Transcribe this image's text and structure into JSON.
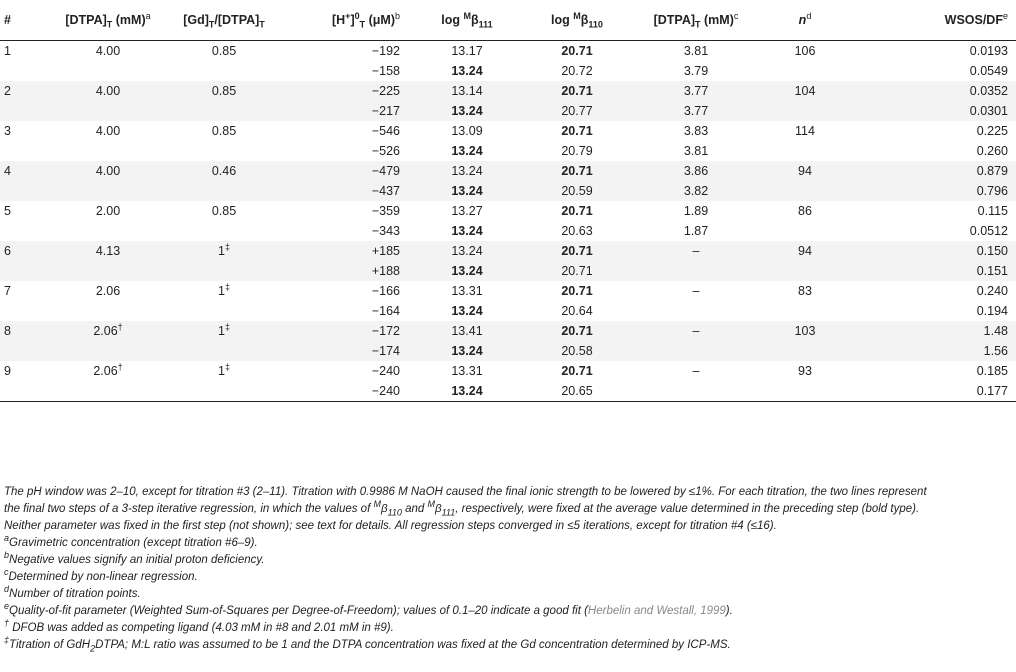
{
  "table": {
    "headers": [
      {
        "main": "#",
        "sub": "",
        "sup": "",
        "sub2": "",
        "tail": ""
      },
      {
        "main": "[DTPA]",
        "sub": "T",
        "sup": "",
        "tail": " (mM)",
        "fn": "a"
      },
      {
        "main": "[Gd]",
        "sub": "T",
        "sup": "",
        "tail": "/[DTPA]",
        "sub2": "T"
      },
      {
        "main": "[H",
        "sup": "+",
        "mid": "]",
        "sup2": "0",
        "sub": "T",
        "tail": " (μM)",
        "fn": "b"
      },
      {
        "main": "log ",
        "sup": "M",
        "greek": "β",
        "sub": "111"
      },
      {
        "main": "log ",
        "sup": "M",
        "greek": "β",
        "sub": "110"
      },
      {
        "main": "[DTPA]",
        "sub": "T",
        "tail": " (mM)",
        "fn": "c"
      },
      {
        "main": "n",
        "fn": "d"
      },
      {
        "main": "WSOS/DF",
        "fn": "e"
      }
    ],
    "rows": [
      {
        "id": "1",
        "dtpa": "4.00",
        "ratio": "0.85",
        "ratio_fn": "",
        "h": "−192",
        "b111": "13.17",
        "b111_bold": false,
        "b110": "20.71",
        "b110_bold": true,
        "dtpa_fit": "3.81",
        "n": "106",
        "wsos": "0.0193",
        "dtpa_fn": ""
      },
      {
        "id": "",
        "dtpa": "",
        "ratio": "",
        "ratio_fn": "",
        "h": "−158",
        "b111": "13.24",
        "b111_bold": true,
        "b110": "20.72",
        "b110_bold": false,
        "dtpa_fit": "3.79",
        "n": "",
        "wsos": "0.0549",
        "dtpa_fn": ""
      },
      {
        "id": "2",
        "dtpa": "4.00",
        "ratio": "0.85",
        "ratio_fn": "",
        "h": "−225",
        "b111": "13.14",
        "b111_bold": false,
        "b110": "20.71",
        "b110_bold": true,
        "dtpa_fit": "3.77",
        "n": "104",
        "wsos": "0.0352",
        "dtpa_fn": ""
      },
      {
        "id": "",
        "dtpa": "",
        "ratio": "",
        "ratio_fn": "",
        "h": "−217",
        "b111": "13.24",
        "b111_bold": true,
        "b110": "20.77",
        "b110_bold": false,
        "dtpa_fit": "3.77",
        "n": "",
        "wsos": "0.0301",
        "dtpa_fn": ""
      },
      {
        "id": "3",
        "dtpa": "4.00",
        "ratio": "0.85",
        "ratio_fn": "",
        "h": "−546",
        "b111": "13.09",
        "b111_bold": false,
        "b110": "20.71",
        "b110_bold": true,
        "dtpa_fit": "3.83",
        "n": "114",
        "wsos": "0.225",
        "dtpa_fn": ""
      },
      {
        "id": "",
        "dtpa": "",
        "ratio": "",
        "ratio_fn": "",
        "h": "−526",
        "b111": "13.24",
        "b111_bold": true,
        "b110": "20.79",
        "b110_bold": false,
        "dtpa_fit": "3.81",
        "n": "",
        "wsos": "0.260",
        "dtpa_fn": ""
      },
      {
        "id": "4",
        "dtpa": "4.00",
        "ratio": "0.46",
        "ratio_fn": "",
        "h": "−479",
        "b111": "13.24",
        "b111_bold": false,
        "b110": "20.71",
        "b110_bold": true,
        "dtpa_fit": "3.86",
        "n": "94",
        "wsos": "0.879",
        "dtpa_fn": ""
      },
      {
        "id": "",
        "dtpa": "",
        "ratio": "",
        "ratio_fn": "",
        "h": "−437",
        "b111": "13.24",
        "b111_bold": true,
        "b110": "20.59",
        "b110_bold": false,
        "dtpa_fit": "3.82",
        "n": "",
        "wsos": "0.796",
        "dtpa_fn": ""
      },
      {
        "id": "5",
        "dtpa": "2.00",
        "ratio": "0.85",
        "ratio_fn": "",
        "h": "−359",
        "b111": "13.27",
        "b111_bold": false,
        "b110": "20.71",
        "b110_bold": true,
        "dtpa_fit": "1.89",
        "n": "86",
        "wsos": "0.115",
        "dtpa_fn": ""
      },
      {
        "id": "",
        "dtpa": "",
        "ratio": "",
        "ratio_fn": "",
        "h": "−343",
        "b111": "13.24",
        "b111_bold": true,
        "b110": "20.63",
        "b110_bold": false,
        "dtpa_fit": "1.87",
        "n": "",
        "wsos": "0.0512",
        "dtpa_fn": ""
      },
      {
        "id": "6",
        "dtpa": "4.13",
        "ratio": "1",
        "ratio_fn": "‡",
        "h": "+185",
        "b111": "13.24",
        "b111_bold": false,
        "b110": "20.71",
        "b110_bold": true,
        "dtpa_fit": "–",
        "n": "94",
        "wsos": "0.150",
        "dtpa_fn": ""
      },
      {
        "id": "",
        "dtpa": "",
        "ratio": "",
        "ratio_fn": "",
        "h": "+188",
        "b111": "13.24",
        "b111_bold": true,
        "b110": "20.71",
        "b110_bold": false,
        "dtpa_fit": "",
        "n": "",
        "wsos": "0.151",
        "dtpa_fn": ""
      },
      {
        "id": "7",
        "dtpa": "2.06",
        "ratio": "1",
        "ratio_fn": "‡",
        "h": "−166",
        "b111": "13.31",
        "b111_bold": false,
        "b110": "20.71",
        "b110_bold": true,
        "dtpa_fit": "–",
        "n": "83",
        "wsos": "0.240",
        "dtpa_fn": ""
      },
      {
        "id": "",
        "dtpa": "",
        "ratio": "",
        "ratio_fn": "",
        "h": "−164",
        "b111": "13.24",
        "b111_bold": true,
        "b110": "20.64",
        "b110_bold": false,
        "dtpa_fit": "",
        "n": "",
        "wsos": "0.194",
        "dtpa_fn": ""
      },
      {
        "id": "8",
        "dtpa": "2.06",
        "ratio": "1",
        "ratio_fn": "‡",
        "h": "−172",
        "b111": "13.41",
        "b111_bold": false,
        "b110": "20.71",
        "b110_bold": true,
        "dtpa_fit": "–",
        "n": "103",
        "wsos": "1.48",
        "dtpa_fn": "†"
      },
      {
        "id": "",
        "dtpa": "",
        "ratio": "",
        "ratio_fn": "",
        "h": "−174",
        "b111": "13.24",
        "b111_bold": true,
        "b110": "20.58",
        "b110_bold": false,
        "dtpa_fit": "",
        "n": "",
        "wsos": "1.56",
        "dtpa_fn": ""
      },
      {
        "id": "9",
        "dtpa": "2.06",
        "ratio": "1",
        "ratio_fn": "‡",
        "h": "−240",
        "b111": "13.31",
        "b111_bold": false,
        "b110": "20.71",
        "b110_bold": true,
        "dtpa_fit": "–",
        "n": "93",
        "wsos": "0.185",
        "dtpa_fn": "†"
      },
      {
        "id": "",
        "dtpa": "",
        "ratio": "",
        "ratio_fn": "",
        "h": "−240",
        "b111": "13.24",
        "b111_bold": true,
        "b110": "20.65",
        "b110_bold": false,
        "dtpa_fit": "",
        "n": "",
        "wsos": "0.177",
        "dtpa_fn": ""
      }
    ]
  },
  "notes": {
    "main_1": "The pH window was 2–10, except for titration #3 (2–11). Titration with 0.9986 M NaOH caused the final ionic strength to be lowered by ≤1%. For each titration, the two lines represent",
    "main_2a": "the final two steps of a 3-step iterative regression, in which the values of ",
    "main_2b": " and ",
    "main_2c": ", respectively, were fixed at the average value determined in the preceding step (bold type).",
    "main_3": "Neither parameter was fixed in the first step (not shown); see text for details. All regression steps converged in ≤5 iterations, except for titration #4 (≤16).",
    "beta_sup": "M",
    "beta": "β",
    "beta110_sub": "110",
    "beta111_sub": "111",
    "a_mark": "a",
    "a_text": "Gravimetric concentration (except titration #6–9).",
    "b_mark": "b",
    "b_text": "Negative values signify an initial proton deficiency.",
    "c_mark": "c",
    "c_text": "Determined by non-linear regression.",
    "d_mark": "d",
    "d_text": "Number of titration points.",
    "e_mark": "e",
    "e_text": "Quality-of-fit parameter (Weighted Sum-of-Squares per Degree-of-Freedom); values of 0.1–20 indicate a good fit (",
    "e_cite": "Herbelin and Westall, 1999",
    "e_end": ").",
    "dagger_mark": "†",
    "dagger_text": " DFOB was added as competing ligand (4.03 mM in #8 and 2.01 mM in #9).",
    "ddagger_mark": "‡",
    "ddagger_text_a": "Titration of GdH",
    "ddagger_sub": "2",
    "ddagger_text_b": "DTPA; M:L ratio was assumed to be 1 and the DTPA concentration was fixed at the Gd concentration determined by ICP-MS."
  }
}
